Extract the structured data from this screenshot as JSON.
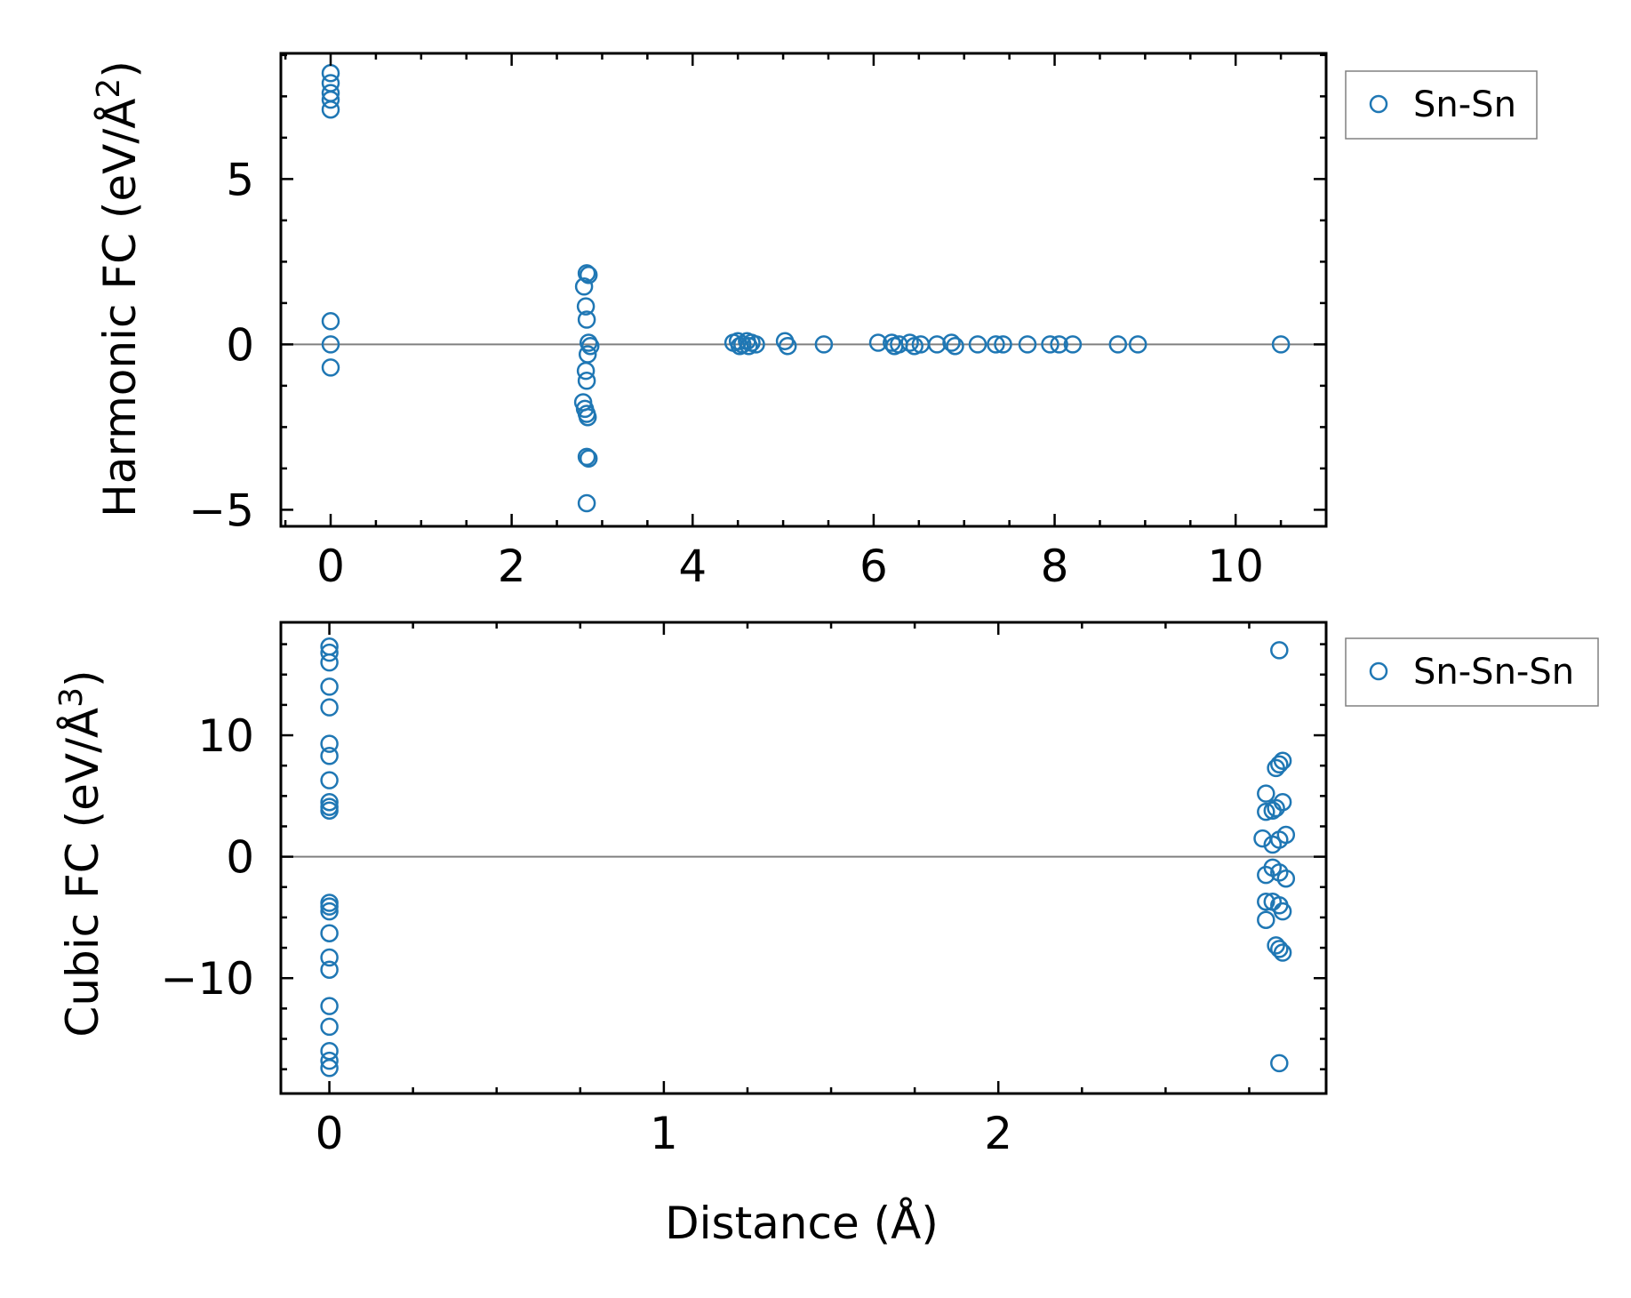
{
  "colors": {
    "marker": "#1f77b4",
    "zero_line": "#808080",
    "legend_border": "#808080",
    "axes": "#000000"
  },
  "chart_data": [
    {
      "type": "scatter",
      "xlabel": "",
      "ylabel_prefix": "Harmonic FC (eV/Å",
      "ylabel_power": "2",
      "ylabel_suffix": ")",
      "xlim": [
        -0.55,
        11.0
      ],
      "ylim": [
        -5.5,
        8.8
      ],
      "xticks": [
        0,
        2,
        4,
        6,
        8,
        10
      ],
      "yticks": [
        -5,
        0,
        5
      ],
      "xtick_labels": [
        "0",
        "2",
        "4",
        "6",
        "8",
        "10"
      ],
      "ytick_labels": [
        "−5",
        "0",
        "5"
      ],
      "zero_line": true,
      "legend": {
        "placement": "outside-right-top",
        "entries": [
          "Sn-Sn"
        ]
      },
      "series": [
        {
          "name": "Sn-Sn",
          "marker": "open-circle",
          "points": [
            [
              0,
              8.2
            ],
            [
              0,
              7.9
            ],
            [
              0,
              7.6
            ],
            [
              0,
              7.4
            ],
            [
              0,
              7.1
            ],
            [
              0,
              0.7
            ],
            [
              0,
              0.0
            ],
            [
              0,
              -0.7
            ],
            [
              2.83,
              2.15
            ],
            [
              2.85,
              2.1
            ],
            [
              2.8,
              1.75
            ],
            [
              2.82,
              1.15
            ],
            [
              2.83,
              0.75
            ],
            [
              2.85,
              0.05
            ],
            [
              2.87,
              -0.05
            ],
            [
              2.84,
              -0.3
            ],
            [
              2.82,
              -0.8
            ],
            [
              2.83,
              -1.1
            ],
            [
              2.79,
              -1.75
            ],
            [
              2.81,
              -1.95
            ],
            [
              2.83,
              -2.1
            ],
            [
              2.84,
              -2.2
            ],
            [
              2.83,
              -3.4
            ],
            [
              2.85,
              -3.45
            ],
            [
              2.83,
              -4.8
            ],
            [
              4.45,
              0.05
            ],
            [
              4.5,
              0.1
            ],
            [
              4.52,
              -0.05
            ],
            [
              4.55,
              0.0
            ],
            [
              4.6,
              0.1
            ],
            [
              4.62,
              -0.05
            ],
            [
              4.65,
              0.05
            ],
            [
              4.7,
              0.0
            ],
            [
              5.02,
              0.1
            ],
            [
              5.05,
              -0.05
            ],
            [
              5.45,
              0.0
            ],
            [
              6.05,
              0.05
            ],
            [
              6.2,
              0.05
            ],
            [
              6.23,
              -0.05
            ],
            [
              6.28,
              0.0
            ],
            [
              6.4,
              0.05
            ],
            [
              6.45,
              -0.05
            ],
            [
              6.52,
              0.0
            ],
            [
              6.7,
              0.0
            ],
            [
              6.86,
              0.05
            ],
            [
              6.9,
              -0.05
            ],
            [
              7.15,
              0.0
            ],
            [
              7.35,
              0.0
            ],
            [
              7.43,
              0.0
            ],
            [
              7.7,
              0.0
            ],
            [
              7.95,
              0.0
            ],
            [
              8.05,
              0.0
            ],
            [
              8.2,
              0.0
            ],
            [
              8.7,
              0.0
            ],
            [
              8.92,
              0.0
            ],
            [
              10.5,
              0.0
            ]
          ]
        }
      ]
    },
    {
      "type": "scatter",
      "xlabel": "Distance (Å)",
      "ylabel_prefix": "Cubic FC (eV/Å",
      "ylabel_power": "3",
      "ylabel_suffix": ")",
      "xlim": [
        -0.145,
        2.98
      ],
      "ylim": [
        -19.5,
        19.3
      ],
      "xticks": [
        0,
        1,
        2
      ],
      "yticks": [
        -10,
        0,
        10
      ],
      "xtick_labels": [
        "0",
        "1",
        "2"
      ],
      "ytick_labels": [
        "−10",
        "0",
        "10"
      ],
      "zero_line": true,
      "legend": {
        "placement": "outside-right-top",
        "entries": [
          "Sn-Sn-Sn"
        ]
      },
      "series": [
        {
          "name": "Sn-Sn-Sn",
          "marker": "open-circle",
          "points": [
            [
              0,
              17.3
            ],
            [
              0,
              16.8
            ],
            [
              0,
              16.0
            ],
            [
              0,
              14.0
            ],
            [
              0,
              12.3
            ],
            [
              0,
              9.3
            ],
            [
              0,
              8.3
            ],
            [
              0,
              6.3
            ],
            [
              0,
              4.5
            ],
            [
              0,
              4.1
            ],
            [
              0,
              3.8
            ],
            [
              0,
              -3.8
            ],
            [
              0,
              -4.1
            ],
            [
              0,
              -4.5
            ],
            [
              0,
              -6.3
            ],
            [
              0,
              -8.3
            ],
            [
              0,
              -9.3
            ],
            [
              0,
              -12.3
            ],
            [
              0,
              -14.0
            ],
            [
              0,
              -16.0
            ],
            [
              0,
              -16.8
            ],
            [
              0,
              -17.4
            ],
            [
              2.84,
              17.0
            ],
            [
              2.8,
              5.2
            ],
            [
              2.8,
              3.7
            ],
            [
              2.79,
              1.5
            ],
            [
              2.8,
              -1.5
            ],
            [
              2.8,
              -3.7
            ],
            [
              2.8,
              -5.2
            ],
            [
              2.83,
              7.3
            ],
            [
              2.84,
              7.6
            ],
            [
              2.85,
              7.9
            ],
            [
              2.82,
              3.8
            ],
            [
              2.83,
              4.0
            ],
            [
              2.85,
              4.5
            ],
            [
              2.82,
              1.0
            ],
            [
              2.84,
              1.4
            ],
            [
              2.86,
              1.8
            ],
            [
              2.82,
              -0.9
            ],
            [
              2.84,
              -1.3
            ],
            [
              2.86,
              -1.8
            ],
            [
              2.82,
              -3.7
            ],
            [
              2.84,
              -4.0
            ],
            [
              2.85,
              -4.5
            ],
            [
              2.83,
              -7.3
            ],
            [
              2.84,
              -7.6
            ],
            [
              2.85,
              -7.9
            ],
            [
              2.84,
              -17.0
            ]
          ]
        }
      ]
    }
  ]
}
